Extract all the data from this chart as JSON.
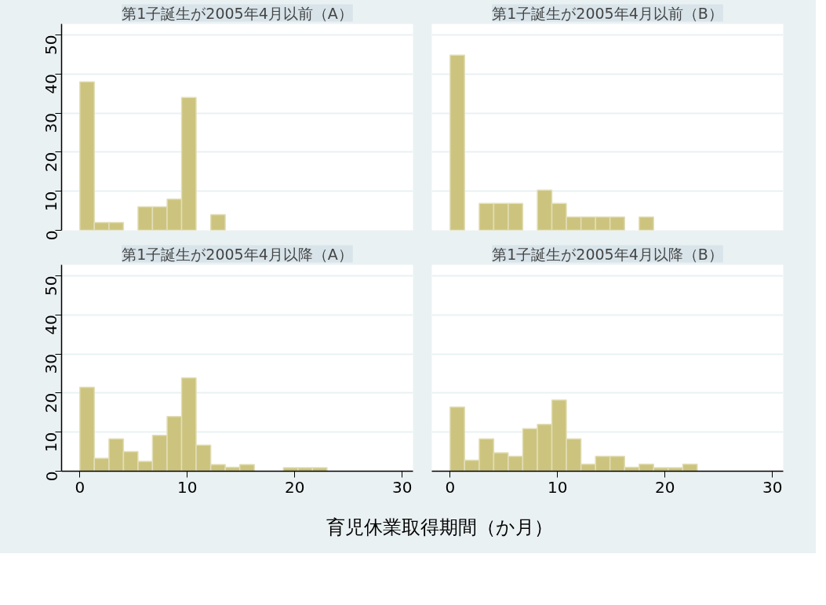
{
  "chart_data": [
    {
      "type": "histogram",
      "title": "第1子誕生が2005年4月以前（A）",
      "bins": [
        0,
        1.35,
        2.71,
        4.06,
        5.41,
        6.76,
        8.12,
        9.47,
        10.82,
        12.18,
        13.53,
        14.88,
        16.24,
        17.59,
        18.94,
        20.29,
        21.65,
        23
      ],
      "values": [
        38,
        2,
        2,
        0,
        6,
        6,
        8,
        34,
        0,
        4,
        0,
        0,
        0,
        0,
        0,
        0,
        0
      ],
      "color": "#ccc47e",
      "xlim": [
        -1.7,
        31
      ],
      "xticks": [
        0,
        10,
        20,
        30
      ],
      "ylim": [
        0,
        52.8
      ],
      "yticks": [
        0,
        10,
        20,
        30,
        40,
        50
      ],
      "grid": "y",
      "tick_labels": "y"
    },
    {
      "type": "histogram",
      "title": "第1子誕生が2005年4月以前（B）",
      "bins": [
        0,
        1.35,
        2.71,
        4.06,
        5.41,
        6.76,
        8.12,
        9.47,
        10.82,
        12.18,
        13.53,
        14.88,
        16.24,
        17.59,
        18.94,
        20.29,
        21.65,
        23
      ],
      "values": [
        44.8,
        0,
        6.9,
        6.9,
        6.9,
        0,
        10.3,
        6.9,
        3.4,
        3.4,
        3.4,
        3.4,
        0,
        3.4,
        0,
        0,
        0
      ],
      "color": "#ccc47e",
      "xlim": [
        -1.7,
        31
      ],
      "xticks": [
        0,
        10,
        20,
        30
      ],
      "ylim": [
        0,
        52.8
      ],
      "yticks": [
        0,
        10,
        20,
        30,
        40,
        50
      ],
      "grid": "y",
      "tick_labels": false
    },
    {
      "type": "histogram",
      "title": "第1子誕生が2005年4月以降（A）",
      "xlabel": "育児休業取得期間（か月）",
      "bins": [
        0,
        1.35,
        2.71,
        4.06,
        5.41,
        6.76,
        8.12,
        9.47,
        10.82,
        12.18,
        13.53,
        14.88,
        16.24,
        17.59,
        18.94,
        20.29,
        21.65,
        23
      ],
      "values": [
        21.5,
        3.3,
        8.3,
        5.0,
        2.5,
        9.2,
        14.0,
        23.9,
        6.7,
        1.7,
        1.0,
        1.7,
        0,
        0,
        0.9,
        0.9,
        0.9
      ],
      "color": "#ccc47e",
      "xlim": [
        -1.7,
        31
      ],
      "xticks": [
        0,
        10,
        20,
        30
      ],
      "ylim": [
        0,
        52.8
      ],
      "yticks": [
        0,
        10,
        20,
        30,
        40,
        50
      ],
      "grid": "y"
    },
    {
      "type": "histogram",
      "title": "第1子誕生が2005年4月以降（B）",
      "bins": [
        0,
        1.35,
        2.71,
        4.06,
        5.41,
        6.76,
        8.12,
        9.47,
        10.82,
        12.18,
        13.53,
        14.88,
        16.24,
        17.59,
        18.94,
        20.29,
        21.65,
        23
      ],
      "values": [
        16.4,
        2.8,
        8.3,
        4.7,
        3.8,
        10.9,
        12.0,
        18.2,
        8.3,
        1.8,
        3.8,
        3.8,
        1.0,
        1.8,
        0.9,
        0.9,
        1.8
      ],
      "color": "#ccc47e",
      "xlim": [
        -1.7,
        31
      ],
      "xticks": [
        0,
        10,
        20,
        30
      ],
      "ylim": [
        0,
        52.8
      ],
      "yticks": [
        0,
        10,
        20,
        30,
        40,
        50
      ],
      "grid": "y",
      "tick_labels": "x"
    }
  ]
}
